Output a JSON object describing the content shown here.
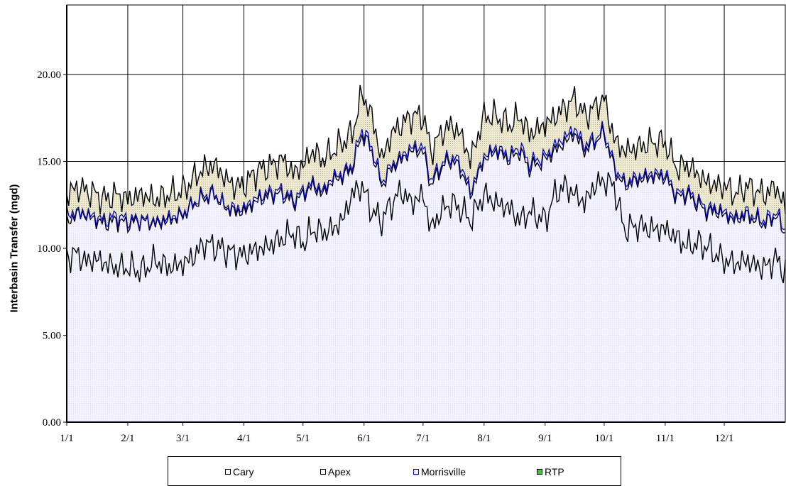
{
  "chart_data": {
    "type": "area",
    "title": "",
    "xlabel": "",
    "ylabel": "Interbasin Transfer (mgd)",
    "ylim": [
      0,
      24
    ],
    "yticks": [
      "0.00",
      "5.00",
      "10.00",
      "15.00",
      "20.00"
    ],
    "xlim": [
      0,
      365
    ],
    "xticks": [
      "1/1",
      "2/1",
      "3/1",
      "4/1",
      "5/1",
      "6/1",
      "7/1",
      "8/1",
      "9/1",
      "10/1",
      "11/1",
      "12/1"
    ],
    "xtick_days": [
      0,
      31,
      59,
      90,
      120,
      151,
      181,
      212,
      243,
      273,
      304,
      334
    ],
    "grid": true,
    "legend_position": "bottom",
    "series": [
      {
        "name": "Cary",
        "colors": {
          "line": "#000000",
          "fill": "#f3f3ff"
        },
        "points": [
          [
            0,
            9.5
          ],
          [
            5,
            9.7
          ],
          [
            10,
            9.2
          ],
          [
            15,
            9.4
          ],
          [
            20,
            9.1
          ],
          [
            25,
            8.9
          ],
          [
            31,
            8.9
          ],
          [
            38,
            8.7
          ],
          [
            45,
            9.3
          ],
          [
            52,
            8.9
          ],
          [
            59,
            9.1
          ],
          [
            65,
            9.6
          ],
          [
            70,
            10.3
          ],
          [
            75,
            10.1
          ],
          [
            80,
            9.9
          ],
          [
            85,
            9.7
          ],
          [
            90,
            9.6
          ],
          [
            95,
            9.9
          ],
          [
            100,
            10.0
          ],
          [
            105,
            10.3
          ],
          [
            110,
            10.6
          ],
          [
            115,
            10.9
          ],
          [
            120,
            10.3
          ],
          [
            125,
            11.1
          ],
          [
            130,
            10.9
          ],
          [
            135,
            11.1
          ],
          [
            140,
            11.6
          ],
          [
            145,
            13.1
          ],
          [
            150,
            13.6
          ],
          [
            155,
            12.1
          ],
          [
            160,
            11.6
          ],
          [
            165,
            12.6
          ],
          [
            170,
            13.3
          ],
          [
            175,
            12.6
          ],
          [
            181,
            13.1
          ],
          [
            185,
            11.1
          ],
          [
            190,
            12.1
          ],
          [
            195,
            12.6
          ],
          [
            200,
            12.3
          ],
          [
            205,
            11.6
          ],
          [
            212,
            13.1
          ],
          [
            218,
            12.6
          ],
          [
            225,
            12.3
          ],
          [
            230,
            11.6
          ],
          [
            235,
            12.1
          ],
          [
            243,
            11.6
          ],
          [
            248,
            13.1
          ],
          [
            253,
            13.6
          ],
          [
            258,
            13.1
          ],
          [
            263,
            12.6
          ],
          [
            268,
            13.6
          ],
          [
            273,
            13.9
          ],
          [
            278,
            13.6
          ],
          [
            283,
            11.1
          ],
          [
            290,
            11.3
          ],
          [
            297,
            11.1
          ],
          [
            304,
            11.1
          ],
          [
            310,
            10.6
          ],
          [
            315,
            10.1
          ],
          [
            320,
            10.3
          ],
          [
            325,
            10.1
          ],
          [
            330,
            9.6
          ],
          [
            334,
            9.3
          ],
          [
            340,
            9.1
          ],
          [
            345,
            9.3
          ],
          [
            350,
            9.0
          ],
          [
            355,
            8.9
          ],
          [
            360,
            9.4
          ],
          [
            365,
            8.6
          ]
        ]
      },
      {
        "name": "Apex",
        "colors": {
          "line": "#000000",
          "fill": "#f3f3ff"
        },
        "points": [
          [
            0,
            11.4
          ],
          [
            5,
            12.0
          ],
          [
            10,
            11.9
          ],
          [
            15,
            11.6
          ],
          [
            20,
            11.4
          ],
          [
            25,
            11.6
          ],
          [
            31,
            11.4
          ],
          [
            38,
            11.6
          ],
          [
            45,
            11.4
          ],
          [
            52,
            11.6
          ],
          [
            59,
            11.9
          ],
          [
            65,
            12.6
          ],
          [
            70,
            12.9
          ],
          [
            75,
            13.1
          ],
          [
            80,
            12.4
          ],
          [
            85,
            12.1
          ],
          [
            90,
            12.1
          ],
          [
            95,
            12.6
          ],
          [
            100,
            12.9
          ],
          [
            105,
            13.1
          ],
          [
            110,
            13.1
          ],
          [
            115,
            12.6
          ],
          [
            120,
            13.1
          ],
          [
            125,
            13.6
          ],
          [
            130,
            13.1
          ],
          [
            135,
            13.9
          ],
          [
            140,
            14.1
          ],
          [
            145,
            14.6
          ],
          [
            150,
            16.6
          ],
          [
            155,
            15.6
          ],
          [
            160,
            13.6
          ],
          [
            165,
            14.6
          ],
          [
            170,
            15.1
          ],
          [
            175,
            15.6
          ],
          [
            181,
            15.6
          ],
          [
            185,
            13.6
          ],
          [
            190,
            14.6
          ],
          [
            195,
            15.1
          ],
          [
            200,
            14.6
          ],
          [
            205,
            13.1
          ],
          [
            212,
            15.1
          ],
          [
            218,
            15.6
          ],
          [
            225,
            15.1
          ],
          [
            230,
            15.6
          ],
          [
            235,
            14.6
          ],
          [
            243,
            15.1
          ],
          [
            248,
            15.6
          ],
          [
            253,
            16.1
          ],
          [
            258,
            16.6
          ],
          [
            263,
            15.6
          ],
          [
            268,
            16.1
          ],
          [
            273,
            16.6
          ],
          [
            278,
            14.6
          ],
          [
            283,
            13.6
          ],
          [
            290,
            13.9
          ],
          [
            297,
            14.1
          ],
          [
            304,
            14.1
          ],
          [
            310,
            12.9
          ],
          [
            315,
            13.1
          ],
          [
            320,
            12.6
          ],
          [
            325,
            12.1
          ],
          [
            330,
            12.1
          ],
          [
            334,
            11.9
          ],
          [
            340,
            11.6
          ],
          [
            345,
            11.9
          ],
          [
            350,
            11.6
          ],
          [
            355,
            11.4
          ],
          [
            360,
            11.9
          ],
          [
            365,
            10.9
          ]
        ]
      },
      {
        "name": "Morrisville",
        "colors": {
          "line": "#0000cc",
          "fill": "#f3f3ff"
        },
        "points": [
          [
            0,
            11.9
          ],
          [
            5,
            12.1
          ],
          [
            10,
            12.0
          ],
          [
            15,
            11.8
          ],
          [
            20,
            11.6
          ],
          [
            25,
            11.9
          ],
          [
            31,
            11.6
          ],
          [
            38,
            11.7
          ],
          [
            45,
            11.5
          ],
          [
            52,
            11.8
          ],
          [
            59,
            12.0
          ],
          [
            65,
            12.7
          ],
          [
            70,
            13.1
          ],
          [
            75,
            13.2
          ],
          [
            80,
            12.5
          ],
          [
            85,
            12.3
          ],
          [
            90,
            12.3
          ],
          [
            95,
            12.8
          ],
          [
            100,
            13.1
          ],
          [
            105,
            13.3
          ],
          [
            110,
            13.3
          ],
          [
            115,
            12.8
          ],
          [
            120,
            13.3
          ],
          [
            125,
            13.8
          ],
          [
            130,
            13.3
          ],
          [
            135,
            14.1
          ],
          [
            140,
            14.3
          ],
          [
            145,
            14.8
          ],
          [
            150,
            16.9
          ],
          [
            155,
            15.8
          ],
          [
            160,
            13.8
          ],
          [
            165,
            14.8
          ],
          [
            170,
            15.3
          ],
          [
            175,
            15.8
          ],
          [
            181,
            15.9
          ],
          [
            185,
            13.9
          ],
          [
            190,
            14.8
          ],
          [
            195,
            15.3
          ],
          [
            200,
            14.9
          ],
          [
            205,
            13.3
          ],
          [
            212,
            15.3
          ],
          [
            218,
            15.8
          ],
          [
            225,
            15.3
          ],
          [
            230,
            15.9
          ],
          [
            235,
            14.9
          ],
          [
            243,
            15.3
          ],
          [
            248,
            15.9
          ],
          [
            253,
            16.4
          ],
          [
            258,
            16.9
          ],
          [
            263,
            15.9
          ],
          [
            268,
            16.3
          ],
          [
            273,
            16.8
          ],
          [
            278,
            14.8
          ],
          [
            283,
            13.8
          ],
          [
            290,
            14.1
          ],
          [
            297,
            14.3
          ],
          [
            304,
            14.3
          ],
          [
            310,
            13.1
          ],
          [
            315,
            13.3
          ],
          [
            320,
            12.8
          ],
          [
            325,
            12.3
          ],
          [
            330,
            12.3
          ],
          [
            334,
            12.1
          ],
          [
            340,
            11.8
          ],
          [
            345,
            12.1
          ],
          [
            350,
            11.8
          ],
          [
            355,
            11.6
          ],
          [
            360,
            12.1
          ],
          [
            365,
            11.1
          ]
        ]
      },
      {
        "name": "RTP",
        "colors": {
          "line": "#000000",
          "fill": "#e6e3c6"
        },
        "points": [
          [
            0,
            13.1
          ],
          [
            5,
            13.5
          ],
          [
            10,
            13.3
          ],
          [
            15,
            13.1
          ],
          [
            20,
            12.8
          ],
          [
            25,
            13.1
          ],
          [
            31,
            12.8
          ],
          [
            38,
            13.1
          ],
          [
            45,
            12.8
          ],
          [
            52,
            13.1
          ],
          [
            59,
            13.3
          ],
          [
            65,
            14.1
          ],
          [
            70,
            14.6
          ],
          [
            75,
            14.8
          ],
          [
            80,
            14.1
          ],
          [
            85,
            13.6
          ],
          [
            90,
            13.6
          ],
          [
            95,
            14.3
          ],
          [
            100,
            14.6
          ],
          [
            105,
            14.8
          ],
          [
            110,
            15.1
          ],
          [
            115,
            14.3
          ],
          [
            120,
            14.8
          ],
          [
            125,
            15.6
          ],
          [
            130,
            15.1
          ],
          [
            135,
            15.6
          ],
          [
            140,
            16.1
          ],
          [
            145,
            16.6
          ],
          [
            150,
            18.9
          ],
          [
            155,
            17.6
          ],
          [
            160,
            15.1
          ],
          [
            165,
            16.6
          ],
          [
            170,
            17.1
          ],
          [
            175,
            17.6
          ],
          [
            181,
            17.6
          ],
          [
            185,
            15.6
          ],
          [
            190,
            16.6
          ],
          [
            195,
            17.1
          ],
          [
            200,
            16.6
          ],
          [
            205,
            15.1
          ],
          [
            212,
            17.6
          ],
          [
            218,
            17.6
          ],
          [
            225,
            17.1
          ],
          [
            230,
            17.6
          ],
          [
            235,
            16.6
          ],
          [
            243,
            17.1
          ],
          [
            248,
            17.6
          ],
          [
            253,
            18.1
          ],
          [
            258,
            18.6
          ],
          [
            263,
            17.6
          ],
          [
            268,
            18.1
          ],
          [
            273,
            18.6
          ],
          [
            278,
            16.3
          ],
          [
            283,
            15.6
          ],
          [
            290,
            15.8
          ],
          [
            297,
            16.1
          ],
          [
            304,
            16.1
          ],
          [
            310,
            14.6
          ],
          [
            315,
            14.8
          ],
          [
            320,
            14.3
          ],
          [
            325,
            13.8
          ],
          [
            330,
            13.6
          ],
          [
            334,
            13.6
          ],
          [
            340,
            13.1
          ],
          [
            345,
            13.6
          ],
          [
            350,
            13.3
          ],
          [
            355,
            13.1
          ],
          [
            360,
            13.6
          ],
          [
            365,
            12.3
          ]
        ]
      }
    ]
  },
  "legend": {
    "items": [
      {
        "label": "Cary",
        "color": "#ffffff"
      },
      {
        "label": "Apex",
        "color": "#ffffff"
      },
      {
        "label": "Morrisville",
        "color": "#f3f3ff",
        "border": "#0000cc"
      },
      {
        "label": "RTP",
        "color": "#33cc33"
      }
    ]
  }
}
